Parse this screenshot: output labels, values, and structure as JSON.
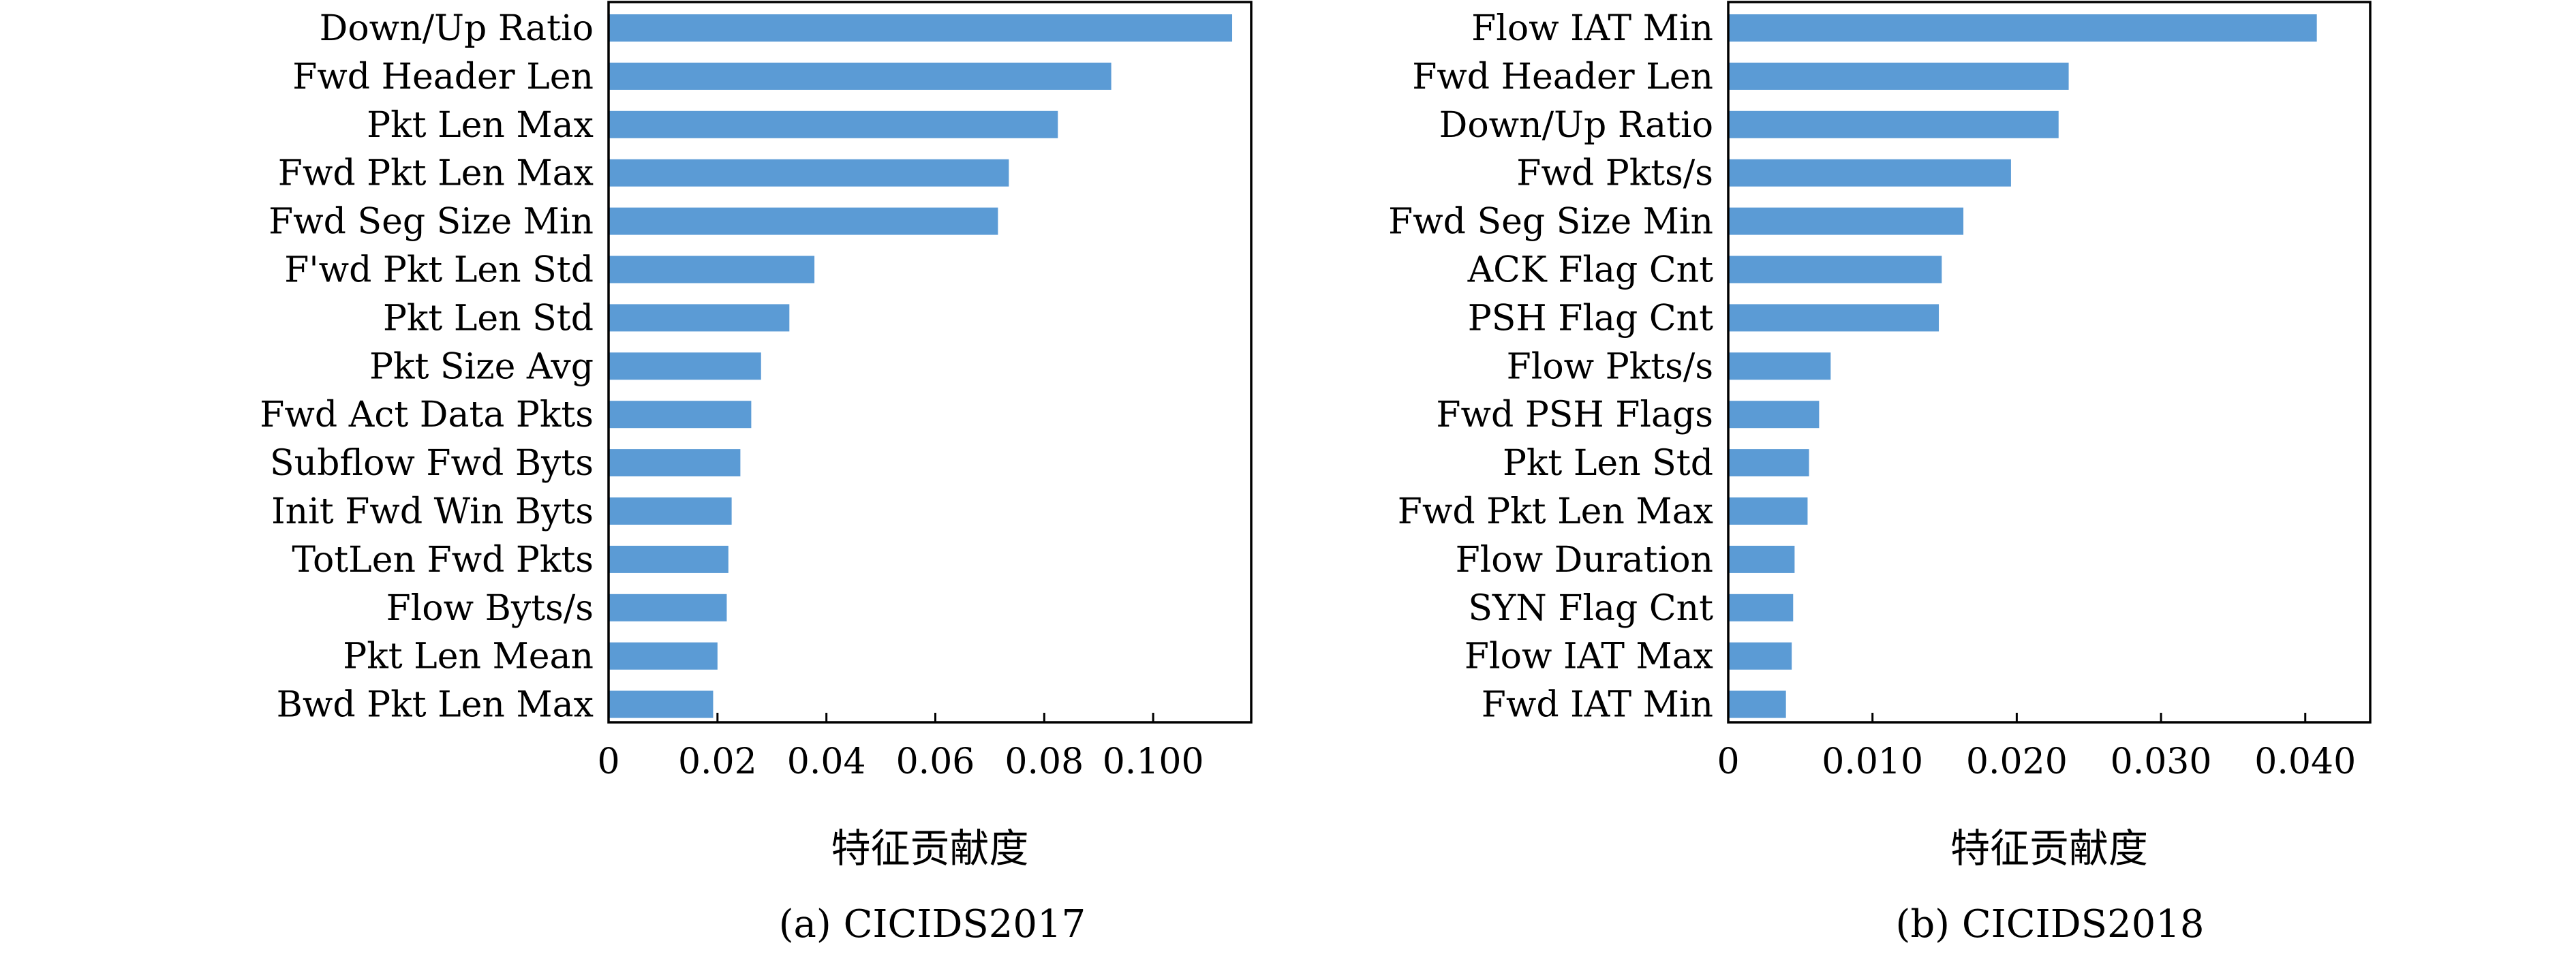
{
  "chart_data": [
    {
      "type": "bar",
      "orientation": "horizontal",
      "caption": "(a) CICIDS2017",
      "xlabel": "特征贡献度",
      "xlim": [
        0,
        0.118
      ],
      "xticks": [
        "0",
        "0.02",
        "0.04",
        "0.06",
        "0.08",
        "0.100"
      ],
      "tick_values": [
        0,
        0.02,
        0.04,
        0.06,
        0.08,
        0.1
      ],
      "grid": false,
      "bar_color": "#5b9bd5",
      "categories": [
        "Down/Up Ratio",
        "Fwd Header Len",
        "Pkt Len Max",
        "Fwd Pkt Len Max",
        "Fwd Seg Size Min",
        "F'wd Pkt Len Std",
        "Pkt Len Std",
        "Pkt Size Avg",
        "Fwd Act Data Pkts",
        "Subflow Fwd Byts",
        "Init Fwd Win Byts",
        "TotLen Fwd Pkts",
        "Flow Byts/s",
        "Pkt Len Mean",
        "Bwd Pkt Len Max"
      ],
      "values": [
        0.1145,
        0.0923,
        0.0825,
        0.0735,
        0.0715,
        0.0378,
        0.0332,
        0.028,
        0.0262,
        0.0242,
        0.0226,
        0.022,
        0.0217,
        0.02,
        0.0192
      ]
    },
    {
      "type": "bar",
      "orientation": "horizontal",
      "caption": "(b) CICIDS2018",
      "xlabel": "特征贡献度",
      "xlim": [
        0,
        0.0445
      ],
      "xticks": [
        "0",
        "0.010",
        "0.020",
        "0.030",
        "0.040"
      ],
      "tick_values": [
        0,
        0.01,
        0.02,
        0.03,
        0.04
      ],
      "grid": false,
      "bar_color": "#5b9bd5",
      "categories": [
        "Flow IAT Min",
        "Fwd Header Len",
        "Down/Up Ratio",
        "Fwd Pkts/s",
        "Fwd Seg Size Min",
        "ACK Flag Cnt",
        "PSH Flag Cnt",
        "Flow Pkts/s",
        "Fwd PSH Flags",
        "Pkt Len Std",
        "Fwd Pkt Len Max",
        "Flow Duration",
        "SYN Flag Cnt",
        "Flow IAT Max",
        "Fwd IAT Min"
      ],
      "values": [
        0.0408,
        0.0236,
        0.0229,
        0.0196,
        0.0163,
        0.0148,
        0.0146,
        0.0071,
        0.0063,
        0.0056,
        0.0055,
        0.0046,
        0.0045,
        0.0044,
        0.004
      ]
    }
  ]
}
